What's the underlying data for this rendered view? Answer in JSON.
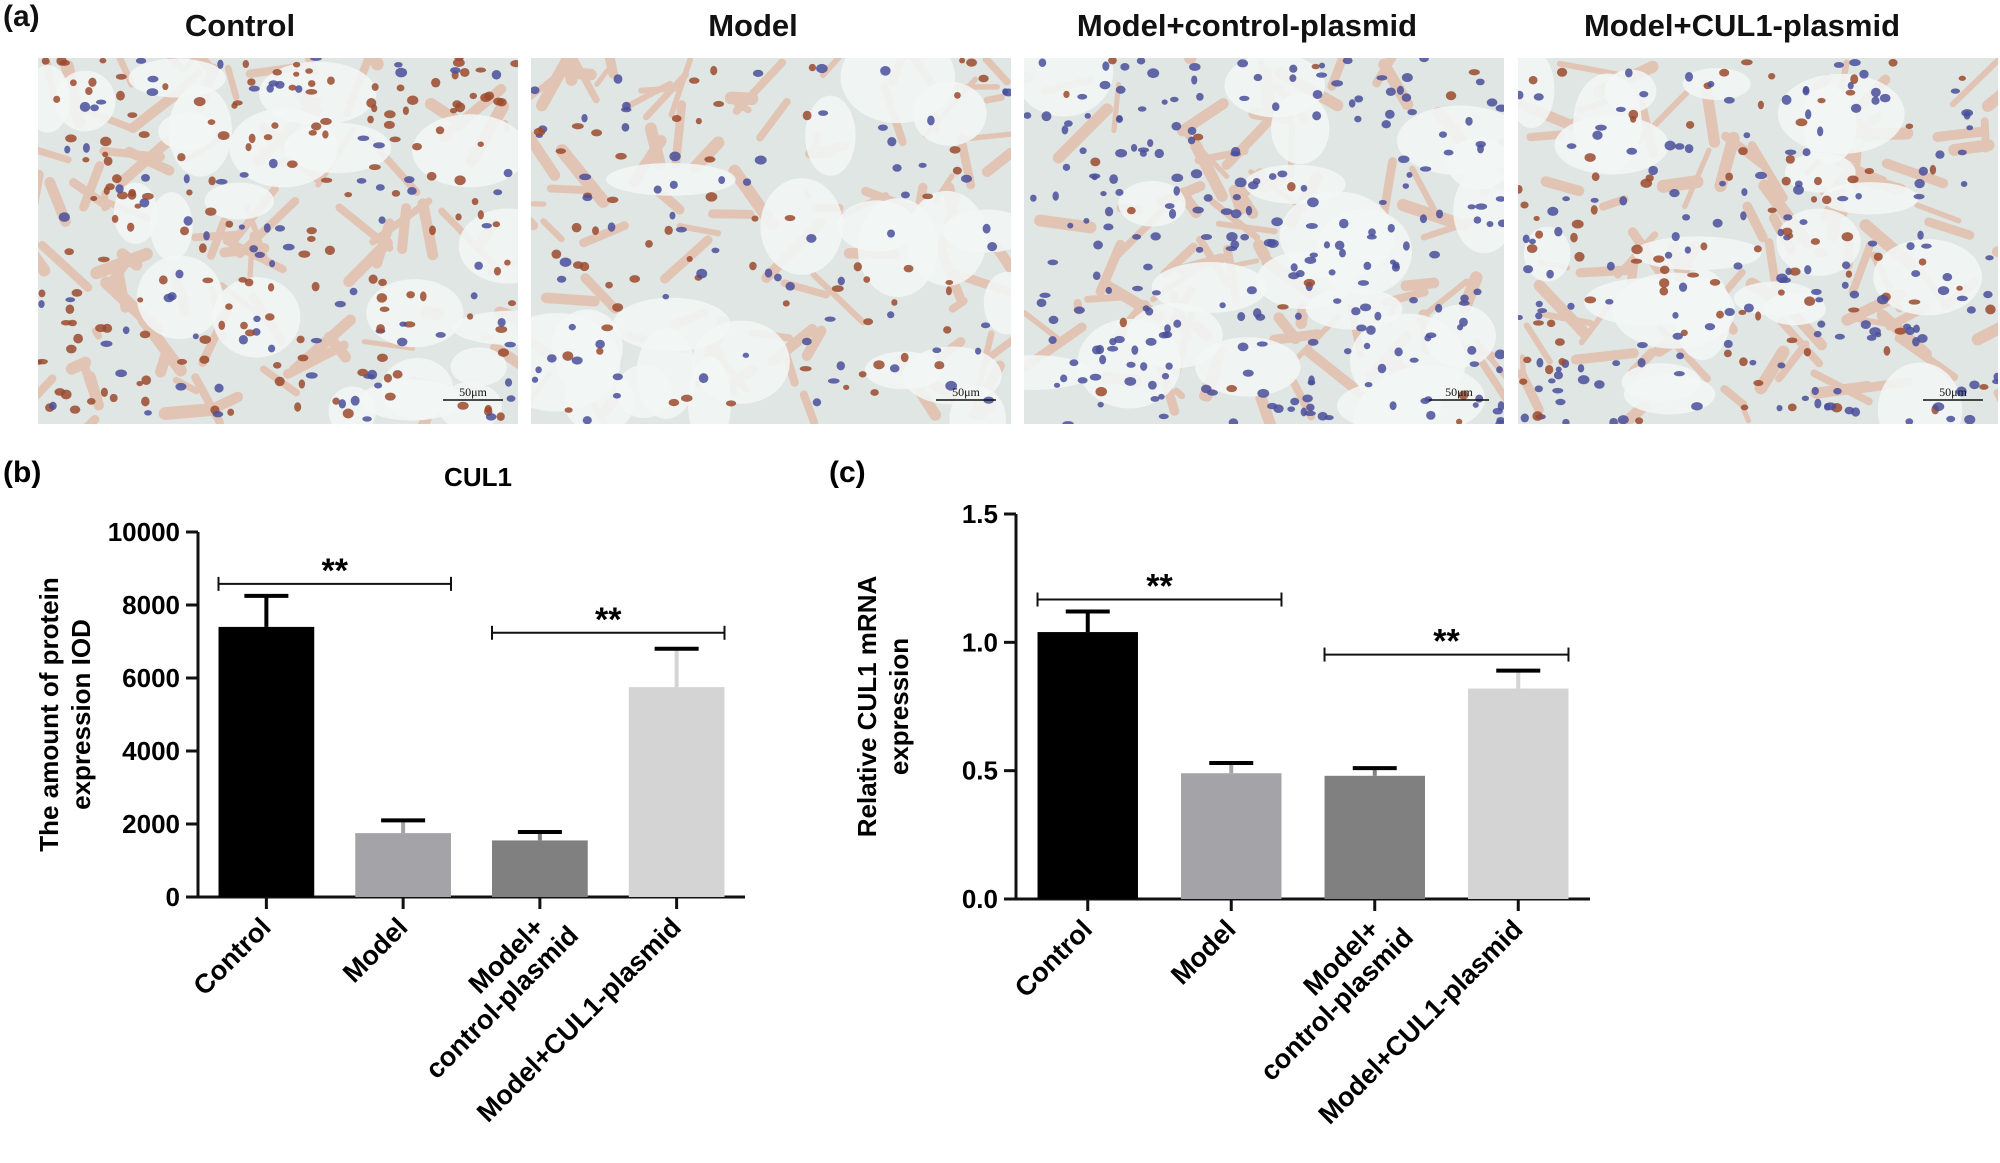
{
  "figure": {
    "panel_labels": {
      "a": "(a)",
      "b": "(b)",
      "c": "(c)"
    },
    "micrographs": [
      {
        "title": "Control",
        "scale_bar": "50μm",
        "stain": "heavy-brown"
      },
      {
        "title": "Model",
        "scale_bar": "50μm",
        "stain": "sparse-brown"
      },
      {
        "title": "Model+control-plasmid",
        "scale_bar": "50μm",
        "stain": "blue-dominant"
      },
      {
        "title": "Model+CUL1-plasmid",
        "scale_bar": "50μm",
        "stain": "mixed-brown"
      }
    ],
    "colors": {
      "control_bar": "#000000",
      "model_bar": "#a3a3a8",
      "model_control_plasmid_bar": "#808080",
      "model_cul1_plasmid_bar": "#d4d4d4",
      "tissue_background": "#dfe6e3",
      "tissue_pink": "#e3bfae",
      "nucleus_brown": "#9c4a2e",
      "nucleus_blue": "#4a4f9a"
    }
  },
  "chart_data": [
    {
      "panel": "b",
      "type": "bar",
      "title": "CUL1",
      "ylabel": "The amount of protein\nexpression IOD",
      "xlabel": "",
      "categories": [
        "Control",
        "Model",
        "Model+\ncontrol-plasmid",
        "Model+CUL1-plasmid"
      ],
      "values": [
        7400,
        1750,
        1550,
        5750
      ],
      "errors": [
        850,
        350,
        230,
        1050
      ],
      "ylim": [
        0,
        10000
      ],
      "yticks": [
        0,
        2000,
        4000,
        6000,
        8000,
        10000
      ],
      "ytick_labels": [
        "0",
        "2000",
        "4000",
        "6000",
        "8000",
        "10000"
      ],
      "significance": [
        {
          "from": 0,
          "to": 1,
          "label": "**"
        },
        {
          "from": 2,
          "to": 3,
          "label": "**"
        }
      ]
    },
    {
      "panel": "c",
      "type": "bar",
      "title": "",
      "ylabel": "Relative CUL1 mRNA\nexpression",
      "xlabel": "",
      "categories": [
        "Control",
        "Model",
        "Model+\ncontrol-plasmid",
        "Model+CUL1-plasmid"
      ],
      "values": [
        1.04,
        0.49,
        0.48,
        0.82
      ],
      "errors": [
        0.08,
        0.04,
        0.03,
        0.07
      ],
      "ylim": [
        0,
        1.5
      ],
      "yticks": [
        0,
        0.5,
        1.0,
        1.5
      ],
      "ytick_labels": [
        "0.0",
        "0.5",
        "1.0",
        "1.5"
      ],
      "significance": [
        {
          "from": 0,
          "to": 1,
          "label": "**"
        },
        {
          "from": 2,
          "to": 3,
          "label": "**"
        }
      ]
    }
  ]
}
